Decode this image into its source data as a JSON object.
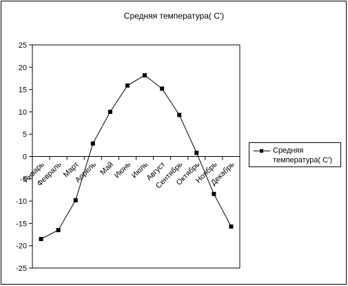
{
  "chart_data": {
    "type": "line",
    "title": "Средняя температура( С')",
    "xlabel": "",
    "ylabel": "",
    "categories": [
      "Январь",
      "Февраль",
      "Март",
      "Апрель",
      "Май",
      "Июнь",
      "Июль",
      "Август",
      "Сентябрь",
      "Октябрь",
      "Ноябрь",
      "Декабрь"
    ],
    "series": [
      {
        "name": "Средняя температура( С')",
        "values": [
          -18.5,
          -16.5,
          -9.8,
          2.9,
          10.0,
          15.9,
          18.2,
          15.2,
          9.3,
          0.8,
          -8.4,
          -15.7
        ],
        "color": "#000000",
        "marker": "square"
      }
    ],
    "ylim": [
      -25,
      25
    ],
    "yticks": [
      25,
      20,
      15,
      10,
      5,
      0,
      -5,
      -10,
      -15,
      -20,
      -25
    ],
    "grid": false,
    "legend_position": "right"
  }
}
